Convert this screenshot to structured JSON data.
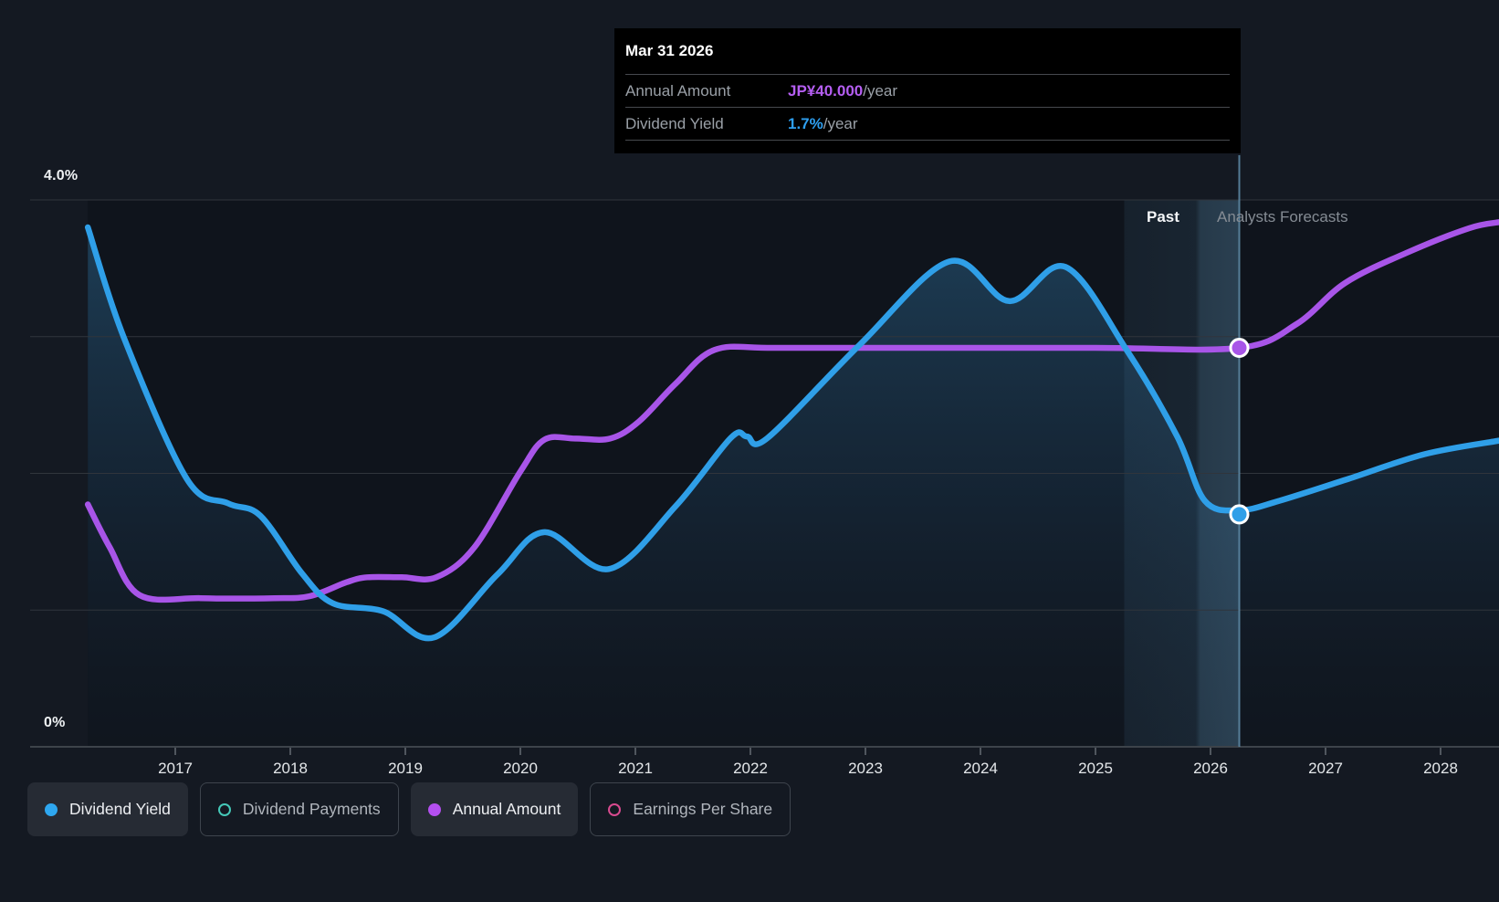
{
  "tooltip": {
    "date": "Mar 31 2026",
    "rows": [
      {
        "label": "Annual Amount",
        "value": "JP¥40.000",
        "suffix": "/year"
      },
      {
        "label": "Dividend Yield",
        "value": "1.7%",
        "suffix": "/year"
      }
    ]
  },
  "chart": {
    "past_label": "Past",
    "forecasts_label": "Analysts Forecasts",
    "y_top_label": "4.0%",
    "y_bottom_label": "0%"
  },
  "legend": [
    {
      "label": "Dividend Yield",
      "style": "filled",
      "color": "#2ea7f0",
      "active": true
    },
    {
      "label": "Dividend Payments",
      "style": "ring",
      "color": "#45c8b8",
      "active": false
    },
    {
      "label": "Annual Amount",
      "style": "filled",
      "color": "#b44ff0",
      "active": true
    },
    {
      "label": "Earnings Per Share",
      "style": "ring",
      "color": "#d84a8f",
      "active": false
    }
  ],
  "colors": {
    "background": "#141922",
    "plot_background": "#0f141c",
    "dividend_yield_line": "#2f9fe8",
    "annual_amount_line": "#a855e8",
    "gridline": "#30353c",
    "axis_line": "#3d434a",
    "divider_line": "#5d87a3",
    "tooltip_background": "#000000"
  },
  "chart_data": {
    "type": "line",
    "x_ticks": [
      2017,
      2018,
      2019,
      2020,
      2021,
      2022,
      2023,
      2024,
      2025,
      2026,
      2027,
      2028
    ],
    "x_range": [
      2016.24,
      2028.51
    ],
    "ylim_percent": [
      0,
      4
    ],
    "y_gridlines_percent": [
      1,
      2,
      3,
      4
    ],
    "grid": true,
    "legend_position": "bottom",
    "divider_year": 2026.25,
    "highlight_band_years": [
      2025.25,
      2026.25
    ],
    "series": [
      {
        "name": "Annual Amount",
        "unit": "JP¥/year",
        "axis": "yen",
        "color": "#a855e8",
        "area_fill": false,
        "points": [
          [
            2016.24,
            24.3
          ],
          [
            2016.43,
            20.0
          ],
          [
            2016.69,
            15.2
          ],
          [
            2017.22,
            14.9
          ],
          [
            2017.86,
            14.9
          ],
          [
            2018.17,
            15.1
          ],
          [
            2018.49,
            16.5
          ],
          [
            2018.67,
            17.0
          ],
          [
            2018.97,
            17.0
          ],
          [
            2019.27,
            17.0
          ],
          [
            2019.6,
            20.0
          ],
          [
            2020.0,
            27.6
          ],
          [
            2020.21,
            30.8
          ],
          [
            2020.48,
            30.9
          ],
          [
            2020.78,
            30.9
          ],
          [
            2021.03,
            32.6
          ],
          [
            2021.35,
            36.4
          ],
          [
            2021.69,
            39.8
          ],
          [
            2022.22,
            40.0
          ],
          [
            2023.4,
            40.0
          ],
          [
            2025.0,
            40.0
          ],
          [
            2026.25,
            40.0
          ],
          [
            2026.75,
            42.4
          ],
          [
            2027.17,
            46.5
          ],
          [
            2027.7,
            49.5
          ],
          [
            2028.25,
            52.0
          ],
          [
            2028.51,
            52.6
          ]
        ]
      },
      {
        "name": "Dividend Yield",
        "unit": "%",
        "axis": "percent",
        "color": "#2f9fe8",
        "area_fill": true,
        "points": [
          [
            2016.24,
            3.8
          ],
          [
            2016.55,
            3.0
          ],
          [
            2017.1,
            1.96
          ],
          [
            2017.46,
            1.78
          ],
          [
            2017.74,
            1.69
          ],
          [
            2018.1,
            1.27
          ],
          [
            2018.37,
            1.05
          ],
          [
            2018.81,
            0.99
          ],
          [
            2019.25,
            0.8
          ],
          [
            2019.8,
            1.26
          ],
          [
            2020.21,
            1.57
          ],
          [
            2020.77,
            1.3
          ],
          [
            2021.35,
            1.76
          ],
          [
            2021.83,
            2.26
          ],
          [
            2021.97,
            2.27
          ],
          [
            2022.15,
            2.26
          ],
          [
            2022.95,
            2.94
          ],
          [
            2023.73,
            3.55
          ],
          [
            2024.25,
            3.26
          ],
          [
            2024.74,
            3.51
          ],
          [
            2025.28,
            2.89
          ],
          [
            2025.71,
            2.27
          ],
          [
            2025.95,
            1.8
          ],
          [
            2026.25,
            1.73
          ],
          [
            2026.6,
            1.8
          ],
          [
            2027.2,
            1.96
          ],
          [
            2027.86,
            2.14
          ],
          [
            2028.51,
            2.24
          ]
        ]
      }
    ],
    "markers": [
      {
        "series": "Annual Amount",
        "year": 2026.25,
        "value": 40,
        "label": "JP¥40.000/year"
      },
      {
        "series": "Dividend Yield",
        "year": 2026.25,
        "value": 1.7,
        "label": "1.7%/year"
      }
    ]
  }
}
